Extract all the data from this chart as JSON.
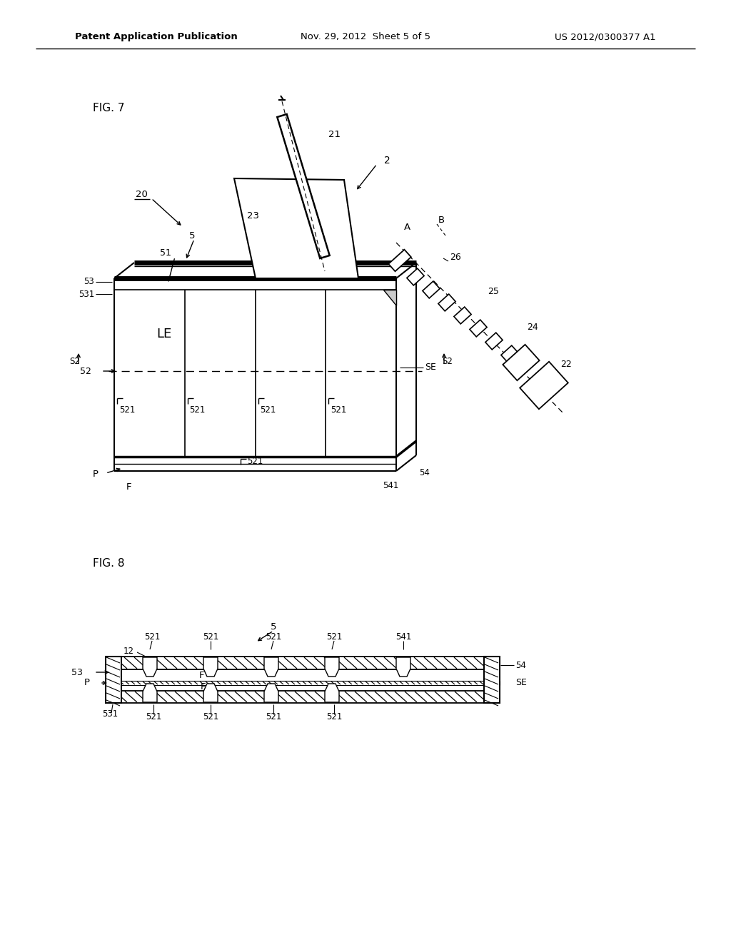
{
  "background_color": "#ffffff",
  "header_left": "Patent Application Publication",
  "header_center": "Nov. 29, 2012  Sheet 5 of 5",
  "header_right": "US 2012/0300377 A1",
  "fig7_label": "FIG. 7",
  "fig8_label": "FIG. 8"
}
